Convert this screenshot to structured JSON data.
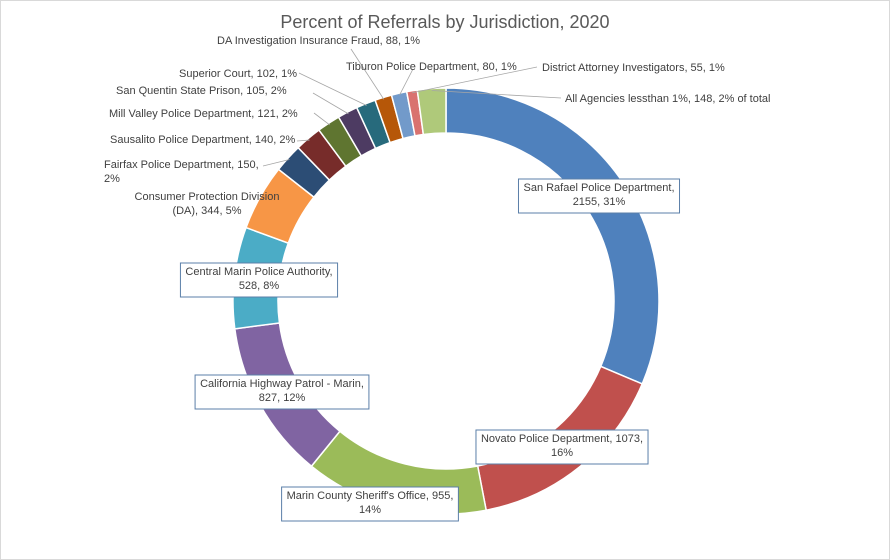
{
  "chart_data": {
    "type": "pie",
    "variant": "donut",
    "title": "Percent of Referrals by Jurisdiction, 2020",
    "legend": "none",
    "slices": [
      {
        "name": "San Rafael Police Department",
        "value": 2155,
        "label_lines": [
          "San Rafael Police Department,",
          "2155, 31%"
        ],
        "color": "#4F81BD"
      },
      {
        "name": "Novato Police Department",
        "value": 1073,
        "label_lines": [
          "Novato Police Department, 1073,",
          "16%"
        ],
        "color": "#C0504D"
      },
      {
        "name": "Marin County Sheriff's Office",
        "value": 955,
        "label_lines": [
          "Marin County Sheriff's Office, 955,",
          "14%"
        ],
        "color": "#9BBB59"
      },
      {
        "name": "California Highway Patrol - Marin",
        "value": 827,
        "label_lines": [
          "California Highway Patrol - Marin,",
          "827, 12%"
        ],
        "color": "#8064A2"
      },
      {
        "name": "Central Marin Police Authority",
        "value": 528,
        "label_lines": [
          "Central Marin Police Authority,",
          "528, 8%"
        ],
        "color": "#4BACC6"
      },
      {
        "name": "Consumer Protection Division (DA)",
        "value": 344,
        "label_lines": [
          "Consumer Protection Division",
          "(DA), 344, 5%"
        ],
        "color": "#F79646"
      },
      {
        "name": "Fairfax Police Department",
        "value": 150,
        "label_lines": [
          "Fairfax Police Department, 150,",
          "2%"
        ],
        "color": "#2C4D75"
      },
      {
        "name": "Sausalito Police Department",
        "value": 140,
        "label_lines": [
          "Sausalito Police Department, 140, 2%"
        ],
        "color": "#772C2A"
      },
      {
        "name": "Mill Valley Police Department",
        "value": 121,
        "label_lines": [
          "Mill Valley Police Department, 121, 2%"
        ],
        "color": "#5F7530"
      },
      {
        "name": "San Quentin State Prison",
        "value": 105,
        "label_lines": [
          "San Quentin State Prison, 105, 2%"
        ],
        "color": "#4D3B62"
      },
      {
        "name": "Superior Court",
        "value": 102,
        "label_lines": [
          "Superior Court, 102, 1%"
        ],
        "color": "#276A7C"
      },
      {
        "name": "DA Investigation Insurance Fraud",
        "value": 88,
        "label_lines": [
          "DA Investigation Insurance Fraud, 88, 1%"
        ],
        "color": "#B65708"
      },
      {
        "name": "Tiburon Police Department",
        "value": 80,
        "label_lines": [
          "Tiburon Police Department, 80, 1%"
        ],
        "color": "#729ACA"
      },
      {
        "name": "District Attorney Investigators",
        "value": 55,
        "label_lines": [
          "District Attorney Investigators, 55, 1%"
        ],
        "color": "#D9726F"
      },
      {
        "name": "All Agencies less than 1%",
        "value": 148,
        "label_lines": [
          "All Agencies lessthan 1%, 148, 2% of total"
        ],
        "color": "#AFC97A"
      }
    ]
  }
}
